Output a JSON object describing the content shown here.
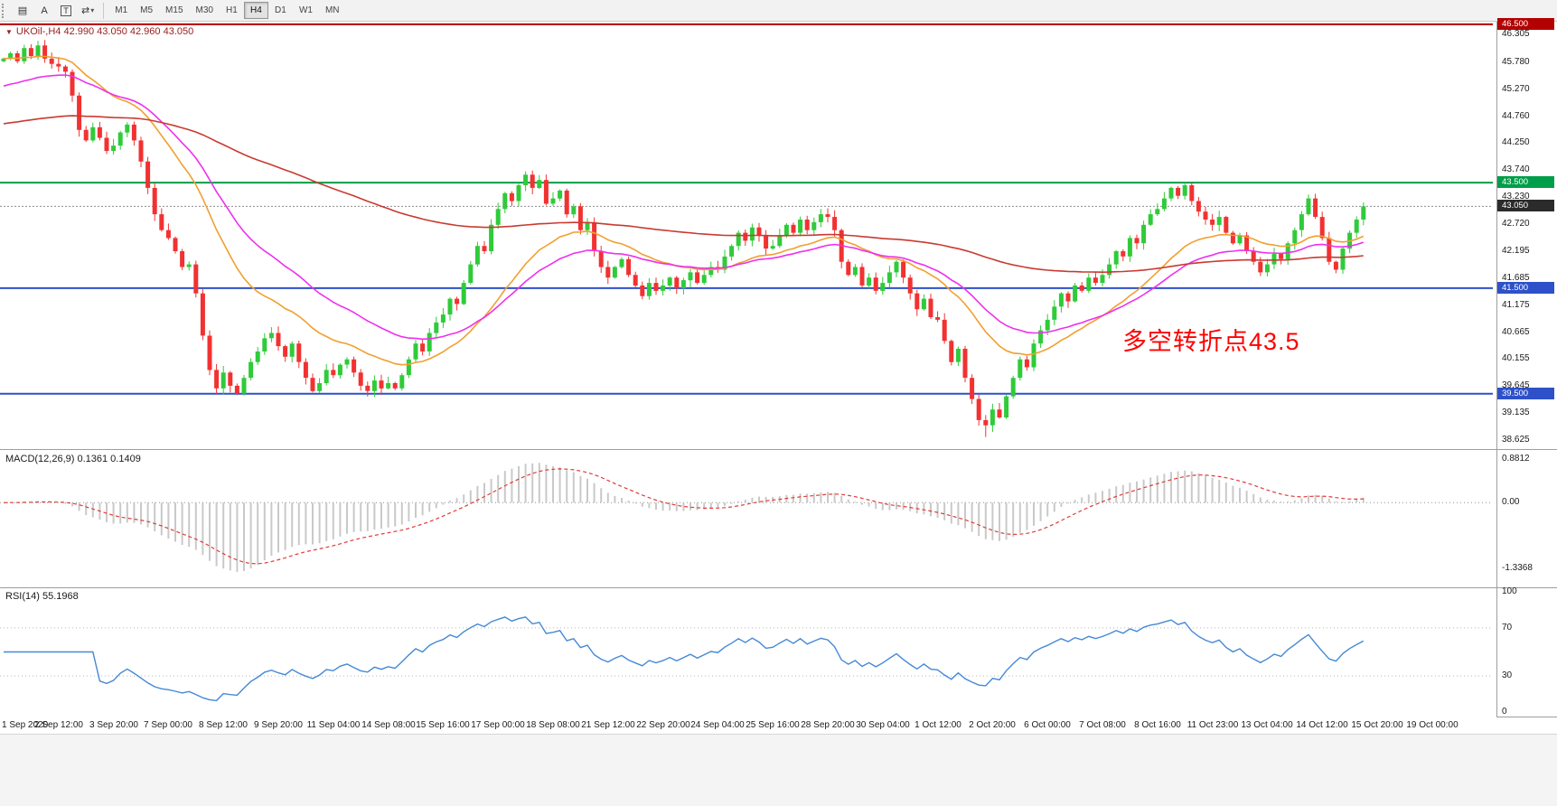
{
  "toolbar": {
    "tools": [
      {
        "name": "chart-grid-icon",
        "glyph": "▤"
      },
      {
        "name": "cursor-a-icon",
        "glyph": "A"
      },
      {
        "name": "text-box-icon",
        "glyph": "T",
        "boxed": true
      },
      {
        "name": "cycle-icon",
        "glyph": "⇄",
        "caret": true
      }
    ],
    "timeframes": [
      "M1",
      "M5",
      "M15",
      "M30",
      "H1",
      "H4",
      "D1",
      "W1",
      "MN"
    ],
    "selected_timeframe": "H4"
  },
  "chart": {
    "title": "UKOil-,H4 42.990 43.050 42.960 43.050",
    "title_color": "#9B1C1C",
    "annotation": {
      "text": "多空转折点43.5",
      "color": "#FF0000"
    },
    "price_axis_labels": [
      "46.305",
      "45.780",
      "45.270",
      "44.760",
      "44.250",
      "43.740",
      "43.230",
      "42.720",
      "42.195",
      "41.685",
      "41.175",
      "40.665",
      "40.155",
      "39.645",
      "39.135",
      "38.625"
    ],
    "price_badges": [
      {
        "label": "46.500",
        "value": 46.5,
        "bg": "#B30000"
      },
      {
        "label": "43.500",
        "value": 43.5,
        "bg": "#009E49"
      },
      {
        "label": "43.050",
        "value": 43.05,
        "bg": "#2B2B2B"
      },
      {
        "label": "41.500",
        "value": 41.5,
        "bg": "#2E51C9"
      },
      {
        "label": "39.500",
        "value": 39.5,
        "bg": "#2E51C9"
      }
    ]
  },
  "chart_data": {
    "type": "candlestick",
    "symbol": "UKOil-",
    "timeframe": "H4",
    "ohlc_current": {
      "open": 42.99,
      "high": 43.05,
      "low": 42.96,
      "close": 43.05
    },
    "ylim": [
      38.45,
      46.55
    ],
    "first_open": 45.8,
    "closes": [
      45.85,
      45.95,
      45.8,
      46.05,
      45.9,
      46.1,
      45.85,
      45.75,
      45.7,
      45.6,
      45.15,
      44.5,
      44.3,
      44.55,
      44.35,
      44.1,
      44.2,
      44.45,
      44.6,
      44.3,
      43.9,
      43.4,
      42.9,
      42.6,
      42.45,
      42.2,
      41.9,
      41.95,
      41.4,
      40.6,
      39.95,
      39.6,
      39.9,
      39.65,
      39.5,
      39.8,
      40.1,
      40.3,
      40.55,
      40.65,
      40.4,
      40.2,
      40.45,
      40.1,
      39.8,
      39.55,
      39.7,
      39.95,
      39.85,
      40.05,
      40.15,
      39.9,
      39.65,
      39.55,
      39.75,
      39.6,
      39.7,
      39.6,
      39.85,
      40.15,
      40.45,
      40.3,
      40.65,
      40.85,
      41.0,
      41.3,
      41.2,
      41.6,
      41.95,
      42.3,
      42.2,
      42.7,
      43.0,
      43.3,
      43.15,
      43.45,
      43.65,
      43.4,
      43.55,
      43.1,
      43.2,
      43.35,
      42.9,
      43.05,
      42.6,
      42.75,
      42.2,
      41.9,
      41.7,
      41.9,
      42.05,
      41.75,
      41.55,
      41.35,
      41.6,
      41.45,
      41.55,
      41.7,
      41.5,
      41.65,
      41.8,
      41.6,
      41.75,
      41.9,
      41.85,
      42.1,
      42.3,
      42.55,
      42.4,
      42.65,
      42.5,
      42.25,
      42.3,
      42.5,
      42.7,
      42.55,
      42.8,
      42.6,
      42.75,
      42.9,
      42.85,
      42.6,
      42.0,
      41.75,
      41.9,
      41.55,
      41.7,
      41.45,
      41.6,
      41.8,
      42.0,
      41.7,
      41.4,
      41.1,
      41.3,
      40.95,
      40.9,
      40.5,
      40.1,
      40.35,
      39.8,
      39.4,
      39.0,
      38.9,
      39.2,
      39.05,
      39.45,
      39.8,
      40.15,
      40.0,
      40.45,
      40.7,
      40.9,
      41.15,
      41.4,
      41.25,
      41.55,
      41.45,
      41.7,
      41.6,
      41.75,
      41.95,
      42.2,
      42.1,
      42.45,
      42.35,
      42.7,
      42.9,
      43.0,
      43.2,
      43.4,
      43.25,
      43.45,
      43.15,
      42.95,
      42.8,
      42.7,
      42.85,
      42.55,
      42.35,
      42.5,
      42.2,
      42.0,
      41.8,
      41.95,
      42.15,
      42.05,
      42.35,
      42.6,
      42.9,
      43.2,
      42.85,
      42.45,
      42.0,
      41.85,
      42.25,
      42.55,
      42.8,
      43.05
    ],
    "low_overrides": [
      {
        "index": 143,
        "low": 38.68
      }
    ],
    "colors": {
      "up": "#2FCB3A",
      "down": "#F23131"
    },
    "moving_averages": [
      {
        "name": "fast-ma",
        "type": "ema",
        "period": 21,
        "color": "#F0A030",
        "seed": 45.85
      },
      {
        "name": "mid-ma",
        "type": "ema",
        "period": 34,
        "color": "#EE30EE",
        "seed": 45.3
      },
      {
        "name": "slow-ma",
        "type": "ema",
        "period": 144,
        "color": "#C93A31",
        "seed": 44.6
      }
    ],
    "horizontal_lines": [
      {
        "value": 46.5,
        "color": "#B30000",
        "width": 2,
        "dash": null
      },
      {
        "value": 43.5,
        "color": "#009E49",
        "width": 2,
        "dash": null
      },
      {
        "value": 43.05,
        "color": "#8C8C8C",
        "width": 1,
        "dash": "2 2"
      },
      {
        "value": 41.5,
        "color": "#2E51C9",
        "width": 2,
        "dash": null
      },
      {
        "value": 39.5,
        "color": "#2E51C9",
        "width": 2,
        "dash": null
      }
    ],
    "macd": {
      "fast": 12,
      "slow": 26,
      "signal": 9,
      "scale": [
        -1.7,
        1.05
      ],
      "bar_color": "#C9C9C9",
      "line_color": "#E03A3A"
    },
    "rsi": {
      "period": 14,
      "color": "#4489D6"
    },
    "annotation": {
      "text": "多空转折点43.5",
      "price_near": 43.5
    }
  },
  "macd_panel": {
    "label": "MACD(12,26,9) 0.1361 0.1409",
    "axis_labels": [
      {
        "text": "0.8812",
        "value": 0.8812
      },
      {
        "text": "0.00",
        "value": 0
      },
      {
        "text": "-1.3368",
        "value": -1.3368
      }
    ]
  },
  "rsi_panel": {
    "label": "RSI(14) 55.1968",
    "axis_labels": [
      {
        "text": "100",
        "value": 100
      },
      {
        "text": "70",
        "value": 70
      },
      {
        "text": "30",
        "value": 30
      },
      {
        "text": "0",
        "value": 0
      }
    ],
    "levels": [
      70,
      30
    ]
  },
  "time_axis": {
    "bars_per_label": 8,
    "labels": [
      "1 Sep 2020",
      "2 Sep 12:00",
      "3 Sep 20:00",
      "7 Sep 00:00",
      "8 Sep 12:00",
      "9 Sep 20:00",
      "11 Sep 04:00",
      "14 Sep 08:00",
      "15 Sep 16:00",
      "17 Sep 00:00",
      "18 Sep 08:00",
      "21 Sep 12:00",
      "22 Sep 20:00",
      "24 Sep 04:00",
      "25 Sep 16:00",
      "28 Sep 20:00",
      "30 Sep 04:00",
      "1 Oct 12:00",
      "2 Oct 20:00",
      "6 Oct 00:00",
      "7 Oct 08:00",
      "8 Oct 16:00",
      "11 Oct 23:00",
      "13 Oct 04:00",
      "14 Oct 12:00",
      "15 Oct 20:00",
      "19 Oct 00:00"
    ]
  }
}
